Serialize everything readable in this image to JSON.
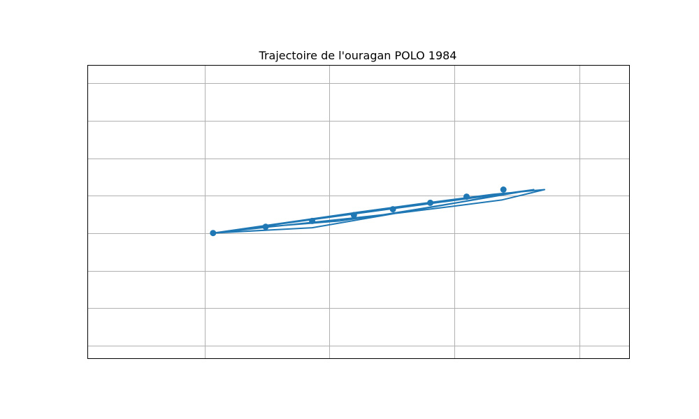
{
  "chart_data": {
    "type": "line",
    "title": "Trajectoire de l'ouragan POLO 1984",
    "xlabel": "",
    "ylabel": "",
    "xlim": [
      0,
      100
    ],
    "ylim": [
      0,
      100
    ],
    "grid": true,
    "x_gridlines": [
      21.7,
      44.7,
      67.8,
      90.8
    ],
    "y_gridlines": [
      4.3,
      17.1,
      29.8,
      42.6,
      55.4,
      68.2,
      81.0,
      93.7
    ],
    "colors": {
      "series": "#1f77b4",
      "grid": "#b0b0b0",
      "frame": "#000000"
    },
    "series": [
      {
        "x": [
          23.2,
          41.5,
          82.4,
          75.5,
          68.7,
          61.5,
          54.2,
          46.6,
          32.9,
          23.2,
          35.2,
          47.0,
          57.8,
          67.5,
          76.6,
          84.4,
          74.9,
          61.1,
          49.6,
          23.2,
          82.4
        ],
        "y": [
          42.7,
          44.5,
          57.5,
          55.5,
          53.2,
          51.0,
          48.8,
          46.8,
          44.8,
          42.7,
          45.1,
          47.4,
          49.6,
          51.8,
          54.0,
          57.5,
          55.9,
          52.6,
          49.7,
          42.7,
          57.5
        ],
        "markers": [
          [
            23.2,
            42.7
          ],
          [
            32.9,
            44.8
          ],
          [
            41.5,
            46.8
          ],
          [
            49.2,
            48.8
          ],
          [
            56.4,
            50.8
          ],
          [
            63.3,
            53.0
          ],
          [
            70.0,
            55.1
          ],
          [
            76.8,
            57.5
          ]
        ]
      }
    ]
  }
}
